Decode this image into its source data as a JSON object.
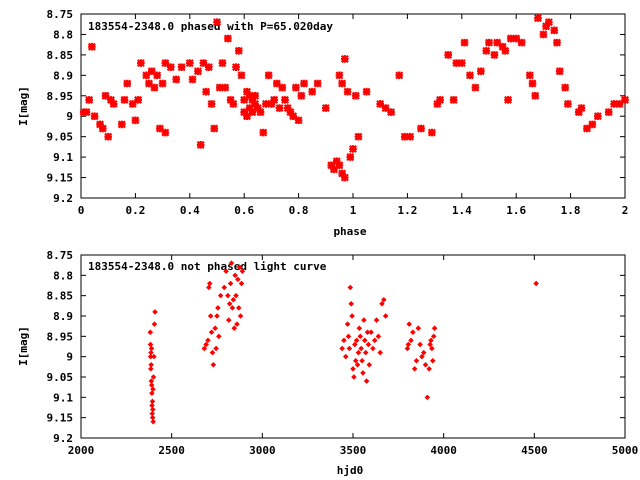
{
  "colors": {
    "points": "#ff0000",
    "axis": "#000000",
    "grid": "#000000"
  },
  "chart_data": [
    {
      "type": "scatter",
      "title": "183554-2348.0 phased with P=65.020day",
      "xlabel": "phase",
      "ylabel": "I[mag]",
      "xlim": [
        0,
        2
      ],
      "ylim": [
        8.75,
        9.2
      ],
      "y_inverted": true,
      "grid": false,
      "marker": "large-cross",
      "x_ticks": [
        "0",
        "0.2",
        "0.4",
        "0.6",
        "0.8",
        "1",
        "1.2",
        "1.4",
        "1.6",
        "1.8",
        "2"
      ],
      "y_ticks": [
        "8.75",
        "8.8",
        "8.85",
        "8.9",
        "8.95",
        "9",
        "9.05",
        "9.1",
        "9.15",
        "9.2"
      ],
      "points": [
        [
          0.01,
          8.99
        ],
        [
          0.02,
          8.99
        ],
        [
          0.03,
          8.96
        ],
        [
          0.04,
          8.83
        ],
        [
          0.05,
          9.0
        ],
        [
          0.07,
          9.02
        ],
        [
          0.08,
          9.03
        ],
        [
          0.09,
          8.95
        ],
        [
          0.1,
          9.05
        ],
        [
          0.11,
          8.96
        ],
        [
          0.12,
          8.97
        ],
        [
          0.15,
          9.02
        ],
        [
          0.16,
          8.96
        ],
        [
          0.17,
          8.92
        ],
        [
          0.19,
          8.97
        ],
        [
          0.2,
          9.01
        ],
        [
          0.21,
          8.96
        ],
        [
          0.22,
          8.87
        ],
        [
          0.24,
          8.9
        ],
        [
          0.25,
          8.92
        ],
        [
          0.26,
          8.89
        ],
        [
          0.27,
          8.93
        ],
        [
          0.28,
          8.9
        ],
        [
          0.29,
          9.03
        ],
        [
          0.3,
          8.92
        ],
        [
          0.31,
          8.87
        ],
        [
          0.31,
          9.04
        ],
        [
          0.33,
          8.88
        ],
        [
          0.35,
          8.91
        ],
        [
          0.37,
          8.88
        ],
        [
          0.4,
          8.87
        ],
        [
          0.41,
          8.91
        ],
        [
          0.43,
          8.89
        ],
        [
          0.44,
          9.07
        ],
        [
          0.45,
          8.87
        ],
        [
          0.46,
          8.94
        ],
        [
          0.47,
          8.88
        ],
        [
          0.48,
          8.97
        ],
        [
          0.49,
          9.03
        ],
        [
          0.5,
          8.77
        ],
        [
          0.51,
          8.93
        ],
        [
          0.52,
          8.87
        ],
        [
          0.53,
          8.93
        ],
        [
          0.54,
          8.81
        ],
        [
          0.55,
          8.96
        ],
        [
          0.56,
          8.97
        ],
        [
          0.57,
          8.88
        ],
        [
          0.58,
          8.84
        ],
        [
          0.59,
          8.9
        ],
        [
          0.6,
          8.96
        ],
        [
          0.6,
          8.99
        ],
        [
          0.61,
          8.94
        ],
        [
          0.61,
          9.0
        ],
        [
          0.62,
          8.95
        ],
        [
          0.62,
          8.98
        ],
        [
          0.63,
          8.96
        ],
        [
          0.63,
          8.99
        ],
        [
          0.64,
          8.95
        ],
        [
          0.64,
          8.97
        ],
        [
          0.65,
          8.98
        ],
        [
          0.66,
          8.99
        ],
        [
          0.67,
          9.04
        ],
        [
          0.68,
          8.97
        ],
        [
          0.69,
          8.9
        ],
        [
          0.7,
          8.97
        ],
        [
          0.71,
          8.96
        ],
        [
          0.72,
          8.92
        ],
        [
          0.73,
          8.98
        ],
        [
          0.74,
          8.93
        ],
        [
          0.75,
          8.96
        ],
        [
          0.76,
          8.98
        ],
        [
          0.77,
          8.99
        ],
        [
          0.78,
          9.0
        ],
        [
          0.79,
          8.93
        ],
        [
          0.8,
          9.01
        ],
        [
          0.81,
          8.95
        ],
        [
          0.82,
          8.92
        ],
        [
          0.85,
          8.94
        ],
        [
          0.87,
          8.92
        ],
        [
          0.9,
          8.98
        ],
        [
          0.92,
          9.12
        ],
        [
          0.93,
          9.13
        ],
        [
          0.94,
          9.11
        ],
        [
          0.95,
          8.9
        ],
        [
          0.95,
          9.12
        ],
        [
          0.96,
          8.92
        ],
        [
          0.96,
          9.14
        ],
        [
          0.97,
          8.86
        ],
        [
          0.97,
          9.15
        ],
        [
          0.98,
          8.94
        ],
        [
          0.99,
          9.1
        ],
        [
          1.0,
          9.08
        ],
        [
          1.01,
          8.95
        ],
        [
          1.02,
          9.05
        ],
        [
          1.05,
          8.94
        ],
        [
          1.1,
          8.97
        ],
        [
          1.12,
          8.98
        ],
        [
          1.14,
          8.99
        ],
        [
          1.17,
          8.9
        ],
        [
          1.19,
          9.05
        ],
        [
          1.21,
          9.05
        ],
        [
          1.25,
          9.03
        ],
        [
          1.29,
          9.04
        ],
        [
          1.31,
          8.97
        ],
        [
          1.32,
          8.96
        ],
        [
          1.35,
          8.85
        ],
        [
          1.37,
          8.96
        ],
        [
          1.38,
          8.87
        ],
        [
          1.4,
          8.87
        ],
        [
          1.41,
          8.82
        ],
        [
          1.43,
          8.9
        ],
        [
          1.45,
          8.93
        ],
        [
          1.47,
          8.89
        ],
        [
          1.49,
          8.84
        ],
        [
          1.5,
          8.82
        ],
        [
          1.52,
          8.85
        ],
        [
          1.53,
          8.82
        ],
        [
          1.55,
          8.83
        ],
        [
          1.56,
          8.84
        ],
        [
          1.57,
          8.96
        ],
        [
          1.58,
          8.81
        ],
        [
          1.6,
          8.81
        ],
        [
          1.62,
          8.82
        ],
        [
          1.65,
          8.9
        ],
        [
          1.66,
          8.92
        ],
        [
          1.67,
          8.95
        ],
        [
          1.68,
          8.76
        ],
        [
          1.7,
          8.8
        ],
        [
          1.71,
          8.78
        ],
        [
          1.72,
          8.77
        ],
        [
          1.74,
          8.79
        ],
        [
          1.75,
          8.82
        ],
        [
          1.76,
          8.89
        ],
        [
          1.78,
          8.93
        ],
        [
          1.79,
          8.97
        ],
        [
          1.83,
          8.99
        ],
        [
          1.84,
          8.98
        ],
        [
          1.86,
          9.03
        ],
        [
          1.88,
          9.02
        ],
        [
          1.9,
          9.0
        ],
        [
          1.94,
          8.99
        ],
        [
          1.96,
          8.97
        ],
        [
          1.98,
          8.97
        ],
        [
          2.0,
          8.96
        ]
      ]
    },
    {
      "type": "scatter",
      "title": "183554-2348.0 not phased light curve",
      "xlabel": "hjd0",
      "ylabel": "I[mag]",
      "xlim": [
        2000,
        5000
      ],
      "ylim": [
        8.75,
        9.2
      ],
      "y_inverted": true,
      "grid": false,
      "marker": "small-diamond",
      "x_ticks": [
        "2000",
        "2500",
        "3000",
        "3500",
        "4000",
        "4500",
        "5000"
      ],
      "y_ticks": [
        "8.75",
        "8.8",
        "8.85",
        "8.9",
        "8.95",
        "9",
        "9.05",
        "9.1",
        "9.15",
        "9.2"
      ],
      "points": [
        [
          2382,
          8.94
        ],
        [
          2383,
          8.97
        ],
        [
          2384,
          9.0
        ],
        [
          2385,
          9.03
        ],
        [
          2386,
          8.99
        ],
        [
          2387,
          9.02
        ],
        [
          2388,
          9.06
        ],
        [
          2389,
          8.98
        ],
        [
          2390,
          9.07
        ],
        [
          2391,
          9.09
        ],
        [
          2392,
          9.12
        ],
        [
          2393,
          9.14
        ],
        [
          2394,
          9.11
        ],
        [
          2395,
          9.15
        ],
        [
          2396,
          9.13
        ],
        [
          2397,
          9.08
        ],
        [
          2398,
          9.16
        ],
        [
          2400,
          9.05
        ],
        [
          2402,
          9.0
        ],
        [
          2405,
          8.92
        ],
        [
          2408,
          8.89
        ],
        [
          2680,
          8.98
        ],
        [
          2690,
          8.97
        ],
        [
          2700,
          8.96
        ],
        [
          2705,
          8.83
        ],
        [
          2710,
          8.82
        ],
        [
          2715,
          8.9
        ],
        [
          2720,
          8.94
        ],
        [
          2725,
          8.99
        ],
        [
          2730,
          9.02
        ],
        [
          2740,
          8.93
        ],
        [
          2745,
          8.98
        ],
        [
          2750,
          8.9
        ],
        [
          2755,
          8.88
        ],
        [
          2760,
          8.95
        ],
        [
          2770,
          8.85
        ],
        [
          2790,
          8.83
        ],
        [
          2800,
          8.79
        ],
        [
          2810,
          8.85
        ],
        [
          2815,
          8.91
        ],
        [
          2820,
          8.87
        ],
        [
          2825,
          8.82
        ],
        [
          2830,
          8.77
        ],
        [
          2835,
          8.88
        ],
        [
          2840,
          8.86
        ],
        [
          2845,
          8.93
        ],
        [
          2850,
          8.8
        ],
        [
          2855,
          8.85
        ],
        [
          2860,
          8.92
        ],
        [
          2865,
          8.81
        ],
        [
          2870,
          8.88
        ],
        [
          2875,
          8.78
        ],
        [
          2880,
          8.9
        ],
        [
          2885,
          8.82
        ],
        [
          2890,
          8.79
        ],
        [
          3440,
          8.98
        ],
        [
          3450,
          8.96
        ],
        [
          3460,
          9.0
        ],
        [
          3470,
          8.92
        ],
        [
          3475,
          8.95
        ],
        [
          3480,
          8.98
        ],
        [
          3485,
          8.83
        ],
        [
          3490,
          8.87
        ],
        [
          3495,
          8.9
        ],
        [
          3500,
          9.03
        ],
        [
          3505,
          9.05
        ],
        [
          3510,
          8.97
        ],
        [
          3515,
          9.01
        ],
        [
          3520,
          8.96
        ],
        [
          3525,
          9.02
        ],
        [
          3530,
          8.99
        ],
        [
          3535,
          8.93
        ],
        [
          3540,
          8.95
        ],
        [
          3545,
          8.98
        ],
        [
          3550,
          9.01
        ],
        [
          3555,
          9.04
        ],
        [
          3560,
          8.91
        ],
        [
          3565,
          8.96
        ],
        [
          3570,
          8.99
        ],
        [
          3575,
          9.06
        ],
        [
          3580,
          8.94
        ],
        [
          3585,
          8.97
        ],
        [
          3590,
          9.02
        ],
        [
          3600,
          8.94
        ],
        [
          3610,
          8.98
        ],
        [
          3620,
          8.96
        ],
        [
          3630,
          8.91
        ],
        [
          3640,
          8.95
        ],
        [
          3650,
          8.99
        ],
        [
          3660,
          8.87
        ],
        [
          3670,
          8.86
        ],
        [
          3680,
          8.9
        ],
        [
          3800,
          8.98
        ],
        [
          3805,
          8.97
        ],
        [
          3810,
          8.92
        ],
        [
          3820,
          8.96
        ],
        [
          3830,
          8.94
        ],
        [
          3840,
          9.03
        ],
        [
          3850,
          9.01
        ],
        [
          3860,
          8.93
        ],
        [
          3870,
          8.97
        ],
        [
          3880,
          9.0
        ],
        [
          3890,
          8.99
        ],
        [
          3900,
          9.02
        ],
        [
          3910,
          9.1
        ],
        [
          3920,
          9.03
        ],
        [
          3925,
          8.97
        ],
        [
          3930,
          8.96
        ],
        [
          3935,
          8.98
        ],
        [
          3940,
          9.01
        ],
        [
          3945,
          8.95
        ],
        [
          3950,
          8.93
        ],
        [
          4510,
          8.82
        ]
      ]
    }
  ]
}
